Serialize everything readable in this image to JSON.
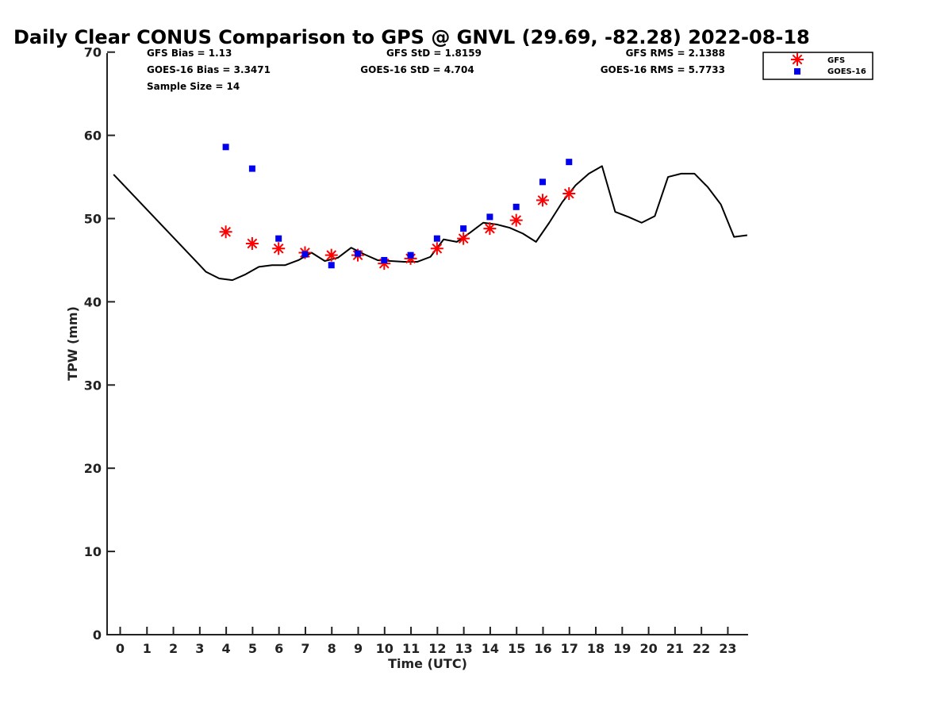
{
  "chart_data": {
    "type": "line",
    "title": "Daily Clear CONUS Comparison to GPS @ GNVL (29.69, -82.28) 2022-08-18",
    "xlabel": "Time (UTC)",
    "ylabel": "TPW (mm)",
    "xlim": [
      -0.5,
      23.75
    ],
    "ylim": [
      0,
      70
    ],
    "x_ticks": [
      0,
      1,
      2,
      3,
      4,
      5,
      6,
      7,
      8,
      9,
      10,
      11,
      12,
      13,
      14,
      15,
      16,
      17,
      18,
      19,
      20,
      21,
      22,
      23
    ],
    "y_ticks": [
      0,
      10,
      20,
      30,
      40,
      50,
      60,
      70
    ],
    "grid": false,
    "legend_position": "top-right",
    "stats": {
      "gfs_bias": "GFS Bias = 1.13",
      "goes_bias": "GOES-16 Bias = 3.3471",
      "sample_size": "Sample Size = 14",
      "gfs_std": "GFS StD = 1.8159",
      "goes_std": "GOES-16 StD = 4.704",
      "gfs_rms": "GFS RMS = 2.1388",
      "goes_rms": "GOES-16 RMS = 5.7733"
    },
    "series": [
      {
        "kind": "line",
        "color": "#000000",
        "x": [
          -0.25,
          3.25,
          3.75,
          4.25,
          4.75,
          5.25,
          5.75,
          6.25,
          6.75,
          7.25,
          7.75,
          8.25,
          8.75,
          9.25,
          9.75,
          10.25,
          10.75,
          11.25,
          11.75,
          12.25,
          12.75,
          13.25,
          13.75,
          14.25,
          14.75,
          15.25,
          15.75,
          16.25,
          16.75,
          17.25,
          17.75,
          18.25,
          18.75,
          19.25,
          19.75,
          20.25,
          20.75,
          21.25,
          21.75,
          22.25,
          22.75,
          23.25,
          23.75
        ],
        "y": [
          55.3,
          43.6,
          42.8,
          42.6,
          43.3,
          44.2,
          44.4,
          44.4,
          45.0,
          45.9,
          44.9,
          45.3,
          46.5,
          45.7,
          45.0,
          44.9,
          44.8,
          44.8,
          45.4,
          47.5,
          47.2,
          48.3,
          49.5,
          49.3,
          48.9,
          48.2,
          47.2,
          49.5,
          52.0,
          54.0,
          55.4,
          56.3,
          50.8,
          50.2,
          49.5,
          50.3,
          55.0,
          55.4,
          55.4,
          53.8,
          51.7,
          47.8,
          48.0
        ]
      },
      {
        "name": "GFS",
        "kind": "scatter",
        "marker": "asterisk",
        "color": "#ff0000",
        "x": [
          4,
          5,
          6,
          7,
          8,
          9,
          10,
          11,
          12,
          13,
          14,
          15,
          16,
          17
        ],
        "y": [
          48.4,
          47.0,
          46.4,
          45.9,
          45.6,
          45.6,
          44.6,
          45.2,
          46.4,
          47.6,
          48.8,
          49.8,
          52.2,
          53.0
        ]
      },
      {
        "name": "GOES-16",
        "kind": "scatter",
        "marker": "square",
        "color": "#0000ee",
        "x": [
          4,
          5,
          6,
          7,
          8,
          9,
          10,
          11,
          12,
          13,
          14,
          15,
          16,
          17
        ],
        "y": [
          58.6,
          56.0,
          47.6,
          45.7,
          44.4,
          45.8,
          45.0,
          45.6,
          47.6,
          48.8,
          50.2,
          51.4,
          54.4,
          56.8
        ]
      }
    ]
  }
}
